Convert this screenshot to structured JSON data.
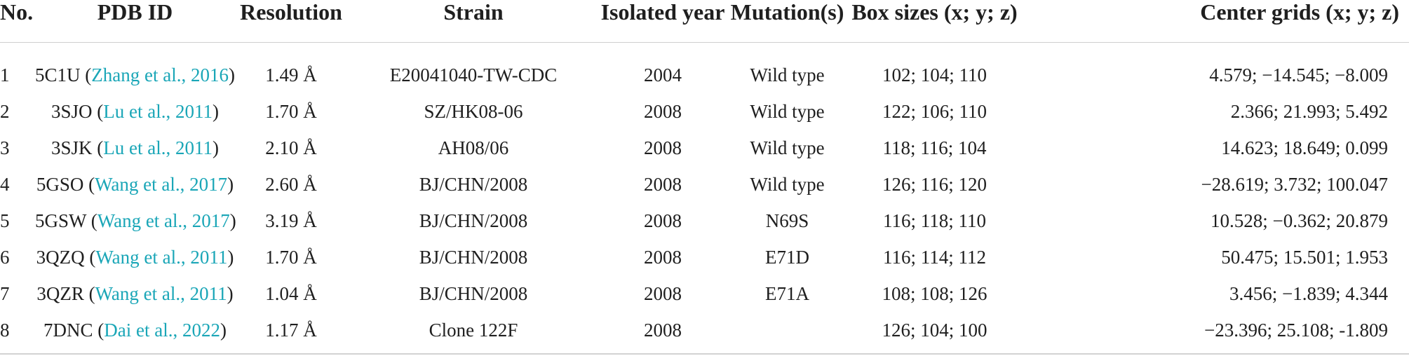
{
  "table": {
    "headers": {
      "no": "No.",
      "pdb": "PDB ID",
      "res": "Resolution",
      "strain": "Strain",
      "year": "Isolated year",
      "mut": "Mutation(s)",
      "box": "Box sizes (x; y; z)",
      "center": "Center grids (x; y; z)"
    },
    "rows": [
      {
        "no": "1",
        "pdb_id": "5C1U",
        "ref_pre": " (",
        "ref_author": "Zhang et al.,",
        "ref_space": " ",
        "ref_year": "2016",
        "ref_post": ")",
        "res": "1.49 Å",
        "strain": "E20041040-TW-CDC",
        "year": "2004",
        "mut": "Wild type",
        "box": "102; 104; 110",
        "center": "4.579; −14.545; −8.009"
      },
      {
        "no": "2",
        "pdb_id": "3SJO",
        "ref_pre": " (",
        "ref_author": "Lu et al.,",
        "ref_space": " ",
        "ref_year": "2011",
        "ref_post": ")",
        "res": "1.70 Å",
        "strain": "SZ/HK08-06",
        "year": "2008",
        "mut": "Wild type",
        "box": "122; 106; 110",
        "center": "2.366; 21.993; 5.492"
      },
      {
        "no": "3",
        "pdb_id": "3SJK",
        "ref_pre": " (",
        "ref_author": "Lu et al.,",
        "ref_space": " ",
        "ref_year": "2011",
        "ref_post": ")",
        "res": "2.10 Å",
        "strain": "AH08/06",
        "year": "2008",
        "mut": "Wild type",
        "box": "118; 116; 104",
        "center": "14.623; 18.649; 0.099"
      },
      {
        "no": "4",
        "pdb_id": "5GSO",
        "ref_pre": " (",
        "ref_author": "Wang et al.,",
        "ref_space": " ",
        "ref_year": "2017",
        "ref_post": ")",
        "res": "2.60 Å",
        "strain": "BJ/CHN/2008",
        "year": "2008",
        "mut": "Wild type",
        "box": "126; 116; 120",
        "center": "−28.619; 3.732; 100.047"
      },
      {
        "no": "5",
        "pdb_id": "5GSW",
        "ref_pre": " (",
        "ref_author": "Wang et al.,",
        "ref_space": " ",
        "ref_year": "2017",
        "ref_post": ")",
        "res": "3.19 Å",
        "strain": "BJ/CHN/2008",
        "year": "2008",
        "mut": "N69S",
        "box": "116; 118; 110",
        "center": "10.528; −0.362; 20.879"
      },
      {
        "no": "6",
        "pdb_id": "3QZQ",
        "ref_pre": " (",
        "ref_author": "Wang et al.,",
        "ref_space": " ",
        "ref_year": "2011",
        "ref_post": ")",
        "res": "1.70 Å",
        "strain": "BJ/CHN/2008",
        "year": "2008",
        "mut": "E71D",
        "box": "116; 114; 112",
        "center": "50.475; 15.501; 1.953"
      },
      {
        "no": "7",
        "pdb_id": "3QZR",
        "ref_pre": " (",
        "ref_author": "Wang et al.,",
        "ref_space": " ",
        "ref_year": "2011",
        "ref_post": ")",
        "res": "1.04 Å",
        "strain": "BJ/CHN/2008",
        "year": "2008",
        "mut": "E71A",
        "box": "108; 108; 126",
        "center": "3.456; −1.839; 4.344"
      },
      {
        "no": "8",
        "pdb_id": "7DNC",
        "ref_pre": " (",
        "ref_author": "Dai et al.,",
        "ref_space": " ",
        "ref_year": "2022",
        "ref_post": ")",
        "res": "1.17 Å",
        "strain": "Clone 122F",
        "year": "2008",
        "mut": "",
        "box": "126; 104; 100",
        "center": "−23.396; 25.108; -1.809"
      }
    ]
  },
  "colors": {
    "link": "#1aa6b7",
    "text": "#1f1f1f",
    "rule": "#cfcfcf"
  }
}
